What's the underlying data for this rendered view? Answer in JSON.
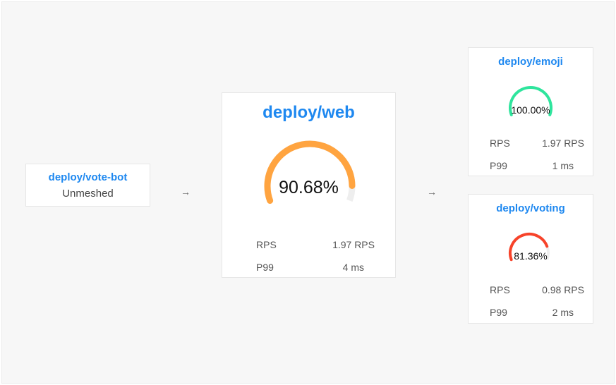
{
  "nodes": {
    "source": {
      "name": "deploy/vote-bot",
      "status": "Unmeshed"
    },
    "web": {
      "name": "deploy/web",
      "success_rate": 90.68,
      "success_label": "90.68%",
      "color": "#ffa440",
      "rps_label": "RPS",
      "rps": "1.97 RPS",
      "p99_label": "P99",
      "p99": "4 ms"
    },
    "emoji": {
      "name": "deploy/emoji",
      "success_rate": 100.0,
      "success_label": "100.00%",
      "color": "#2ee59d",
      "rps_label": "RPS",
      "rps": "1.97 RPS",
      "p99_label": "P99",
      "p99": "1 ms"
    },
    "voting": {
      "name": "deploy/voting",
      "success_rate": 81.36,
      "success_label": "81.36%",
      "color": "#f7432a",
      "rps_label": "RPS",
      "rps": "0.98 RPS",
      "p99_label": "P99",
      "p99": "2 ms"
    }
  },
  "arrows": {
    "glyph": "→"
  },
  "gauge_track_color": "#eeeeee"
}
